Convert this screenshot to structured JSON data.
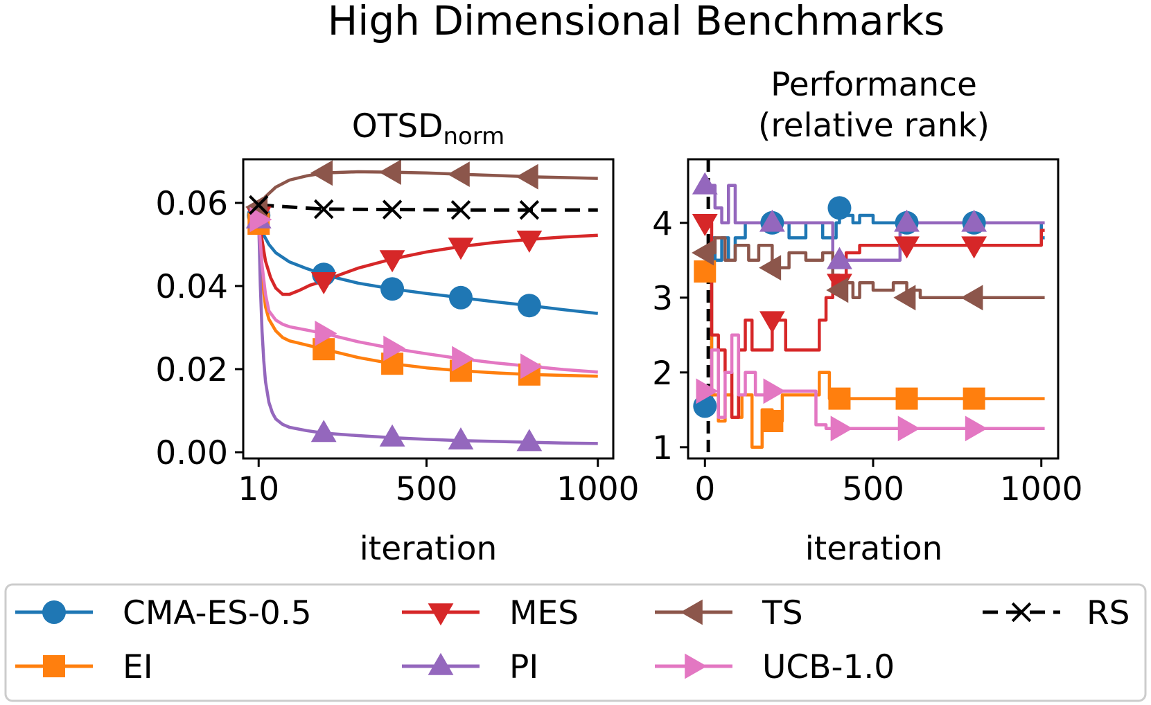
{
  "figure_title": "High Dimensional Benchmarks",
  "colors": {
    "CMA-ES-0.5": "#1f77b4",
    "EI": "#ff7f0e",
    "MES": "#d62728",
    "PI": "#9467bd",
    "TS": "#8c564b",
    "UCB-1.0": "#e377c2",
    "RS": "#000000"
  },
  "chart_data": [
    {
      "type": "line",
      "title": "OTSD",
      "title_subscript": "norm",
      "xlabel": "iteration",
      "ylabel": "",
      "xlim": [
        -35,
        1045
      ],
      "ylim": [
        -0.0015,
        0.0705
      ],
      "xticks": [
        10,
        500,
        1000
      ],
      "xtick_labels": [
        "10",
        "500",
        "1000"
      ],
      "yticks": [
        0.0,
        0.02,
        0.04,
        0.06
      ],
      "ytick_labels": [
        "0.00",
        "0.02",
        "0.04",
        "0.06"
      ],
      "series": [
        {
          "name": "CMA-ES-0.5",
          "marker": "circle",
          "linestyle": "solid",
          "x": [
            10,
            20,
            40,
            60,
            100,
            150,
            200,
            250,
            300,
            400,
            500,
            600,
            700,
            800,
            900,
            1000
          ],
          "y": [
            0.057,
            0.053,
            0.05,
            0.048,
            0.0458,
            0.0442,
            0.0428,
            0.0417,
            0.0407,
            0.0393,
            0.0382,
            0.0372,
            0.0362,
            0.0353,
            0.0343,
            0.0334
          ],
          "markers_x": [
            10,
            200,
            400,
            600,
            800
          ]
        },
        {
          "name": "EI",
          "marker": "square",
          "linestyle": "solid",
          "x": [
            10,
            20,
            30,
            40,
            60,
            80,
            100,
            150,
            200,
            300,
            400,
            500,
            600,
            700,
            800,
            900,
            1000
          ],
          "y": [
            0.055,
            0.042,
            0.035,
            0.032,
            0.0292,
            0.0276,
            0.0268,
            0.0258,
            0.0248,
            0.0228,
            0.0213,
            0.0203,
            0.0196,
            0.0191,
            0.0187,
            0.0185,
            0.0183
          ],
          "markers_x": [
            10,
            200,
            400,
            600,
            800
          ]
        },
        {
          "name": "MES",
          "marker": "triangle-down",
          "linestyle": "solid",
          "x": [
            10,
            20,
            30,
            45,
            60,
            80,
            100,
            130,
            160,
            200,
            250,
            300,
            400,
            500,
            600,
            700,
            800,
            900,
            1000
          ],
          "y": [
            0.057,
            0.051,
            0.046,
            0.042,
            0.0395,
            0.038,
            0.038,
            0.039,
            0.0402,
            0.0412,
            0.0428,
            0.0443,
            0.0465,
            0.0482,
            0.0495,
            0.0505,
            0.0512,
            0.0518,
            0.0522
          ],
          "markers_x": [
            10,
            200,
            400,
            600,
            800
          ]
        },
        {
          "name": "PI",
          "marker": "triangle-up",
          "linestyle": "solid",
          "x": [
            10,
            15,
            20,
            25,
            30,
            40,
            50,
            60,
            80,
            100,
            150,
            200,
            300,
            400,
            500,
            600,
            700,
            800,
            900,
            1000
          ],
          "y": [
            0.056,
            0.04,
            0.029,
            0.022,
            0.017,
            0.012,
            0.0095,
            0.008,
            0.0067,
            0.006,
            0.0052,
            0.0046,
            0.004,
            0.0035,
            0.0031,
            0.0028,
            0.0026,
            0.0024,
            0.0022,
            0.0021
          ],
          "markers_x": [
            10,
            200,
            400,
            600,
            800
          ]
        },
        {
          "name": "TS",
          "marker": "triangle-left",
          "linestyle": "solid",
          "x": [
            10,
            30,
            60,
            100,
            150,
            200,
            300,
            400,
            500,
            600,
            700,
            800,
            900,
            1000
          ],
          "y": [
            0.059,
            0.0615,
            0.0638,
            0.0655,
            0.0665,
            0.0672,
            0.0675,
            0.0674,
            0.0672,
            0.0669,
            0.0666,
            0.0663,
            0.0661,
            0.0659
          ],
          "markers_x": [
            10,
            200,
            400,
            600,
            800
          ]
        },
        {
          "name": "UCB-1.0",
          "marker": "triangle-right",
          "linestyle": "solid",
          "x": [
            10,
            20,
            30,
            40,
            60,
            80,
            100,
            150,
            200,
            300,
            400,
            500,
            600,
            700,
            800,
            900,
            1000
          ],
          "y": [
            0.056,
            0.045,
            0.038,
            0.034,
            0.0318,
            0.0308,
            0.0302,
            0.0294,
            0.0286,
            0.0266,
            0.025,
            0.0237,
            0.0225,
            0.0215,
            0.0207,
            0.0199,
            0.0193
          ],
          "markers_x": [
            10,
            200,
            400,
            600,
            800
          ]
        },
        {
          "name": "RS",
          "marker": "x",
          "linestyle": "dashed",
          "x": [
            10,
            200,
            400,
            600,
            800,
            1000
          ],
          "y": [
            0.0595,
            0.0585,
            0.0584,
            0.0583,
            0.0583,
            0.0583
          ],
          "markers_x": [
            10,
            200,
            400,
            600,
            800
          ]
        }
      ]
    },
    {
      "type": "line",
      "title": "Performance\n(relative rank)",
      "title_lines": [
        "Performance",
        "(relative rank)"
      ],
      "xlabel": "iteration",
      "ylabel": "",
      "xlim": [
        -50,
        1050
      ],
      "ylim": [
        0.85,
        4.85
      ],
      "xticks": [
        0,
        500,
        1000
      ],
      "xtick_labels": [
        "0",
        "500",
        "1000"
      ],
      "yticks": [
        1,
        2,
        3,
        4
      ],
      "ytick_labels": [
        "1",
        "2",
        "3",
        "4"
      ],
      "vline": {
        "x": 10,
        "style": "dashed",
        "color": "#000000"
      },
      "series": [
        {
          "name": "CMA-ES-0.5",
          "marker": "circle",
          "linestyle": "steps",
          "x": [
            0,
            10,
            20,
            30,
            50,
            70,
            90,
            120,
            200,
            250,
            300,
            350,
            390,
            400,
            420,
            440,
            460,
            500,
            600,
            700,
            800,
            900,
            1000,
            1010
          ],
          "y": [
            1.55,
            1.55,
            3.8,
            3.5,
            3.8,
            3.5,
            3.8,
            4.0,
            4.0,
            3.8,
            4.0,
            3.8,
            4.0,
            4.2,
            4.1,
            4.0,
            4.1,
            4.0,
            4.0,
            4.0,
            4.0,
            4.0,
            3.8,
            3.8
          ],
          "markers_x": [
            0,
            200,
            400,
            600,
            800
          ]
        },
        {
          "name": "EI",
          "marker": "square",
          "linestyle": "steps",
          "x": [
            0,
            10,
            20,
            40,
            60,
            80,
            110,
            140,
            170,
            200,
            230,
            260,
            300,
            340,
            370,
            400,
            1010
          ],
          "y": [
            3.35,
            3.35,
            1.7,
            1.35,
            1.7,
            1.4,
            1.7,
            1.0,
            1.5,
            1.35,
            1.7,
            1.7,
            1.7,
            2.0,
            1.65,
            1.65,
            1.65
          ],
          "markers_x": [
            0,
            200,
            400,
            600,
            800
          ]
        },
        {
          "name": "MES",
          "marker": "triangle-down",
          "linestyle": "steps",
          "x": [
            0,
            10,
            20,
            40,
            60,
            80,
            100,
            120,
            140,
            160,
            200,
            240,
            280,
            320,
            340,
            360,
            380,
            420,
            460,
            500,
            600,
            700,
            800,
            900,
            1000,
            1010
          ],
          "y": [
            4.0,
            4.0,
            2.5,
            2.3,
            2.0,
            1.4,
            2.3,
            2.7,
            2.3,
            2.3,
            2.7,
            2.3,
            2.3,
            2.3,
            2.7,
            3.0,
            3.2,
            3.6,
            3.7,
            3.7,
            3.7,
            3.7,
            3.7,
            3.7,
            3.9,
            3.9
          ],
          "markers_x": [
            0,
            200,
            400,
            600,
            800
          ]
        },
        {
          "name": "PI",
          "marker": "triangle-up",
          "linestyle": "steps",
          "x": [
            0,
            10,
            30,
            50,
            70,
            90,
            200,
            300,
            380,
            400,
            500,
            560,
            580,
            600,
            620,
            1010
          ],
          "y": [
            4.5,
            4.5,
            4.2,
            4.0,
            4.5,
            4.0,
            4.0,
            4.0,
            3.5,
            3.5,
            3.5,
            3.5,
            4.0,
            4.0,
            4.0,
            4.0
          ],
          "markers_x": [
            0,
            200,
            400,
            600,
            800
          ]
        },
        {
          "name": "TS",
          "marker": "triangle-left",
          "linestyle": "steps",
          "x": [
            0,
            10,
            30,
            60,
            90,
            130,
            160,
            200,
            250,
            300,
            350,
            380,
            400,
            420,
            440,
            460,
            500,
            560,
            600,
            620,
            640,
            1010
          ],
          "y": [
            3.6,
            3.6,
            3.8,
            3.5,
            3.7,
            3.5,
            3.7,
            3.4,
            3.6,
            3.5,
            3.6,
            3.3,
            3.1,
            3.2,
            3.0,
            3.2,
            3.1,
            3.2,
            3.0,
            3.1,
            3.0,
            3.0
          ],
          "markers_x": [
            0,
            200,
            400,
            600,
            800
          ]
        },
        {
          "name": "UCB-1.0",
          "marker": "triangle-right",
          "linestyle": "steps",
          "x": [
            0,
            10,
            20,
            40,
            60,
            80,
            100,
            120,
            150,
            200,
            250,
            300,
            330,
            360,
            400,
            1010
          ],
          "y": [
            1.75,
            1.75,
            2.3,
            1.4,
            2.0,
            2.5,
            1.7,
            2.0,
            1.7,
            1.75,
            1.75,
            1.75,
            1.3,
            1.25,
            1.25,
            1.25
          ],
          "markers_x": [
            0,
            200,
            400,
            600,
            800
          ]
        }
      ]
    }
  ],
  "legend": {
    "placement": "bottom",
    "entries": [
      {
        "label": "CMA-ES-0.5",
        "marker": "circle",
        "linestyle": "solid"
      },
      {
        "label": "MES",
        "marker": "triangle-down",
        "linestyle": "solid"
      },
      {
        "label": "TS",
        "marker": "triangle-left",
        "linestyle": "solid"
      },
      {
        "label": "RS",
        "marker": "x",
        "linestyle": "dashed"
      },
      {
        "label": "EI",
        "marker": "square",
        "linestyle": "solid"
      },
      {
        "label": "PI",
        "marker": "triangle-up",
        "linestyle": "solid"
      },
      {
        "label": "UCB-1.0",
        "marker": "triangle-right",
        "linestyle": "solid"
      }
    ]
  }
}
